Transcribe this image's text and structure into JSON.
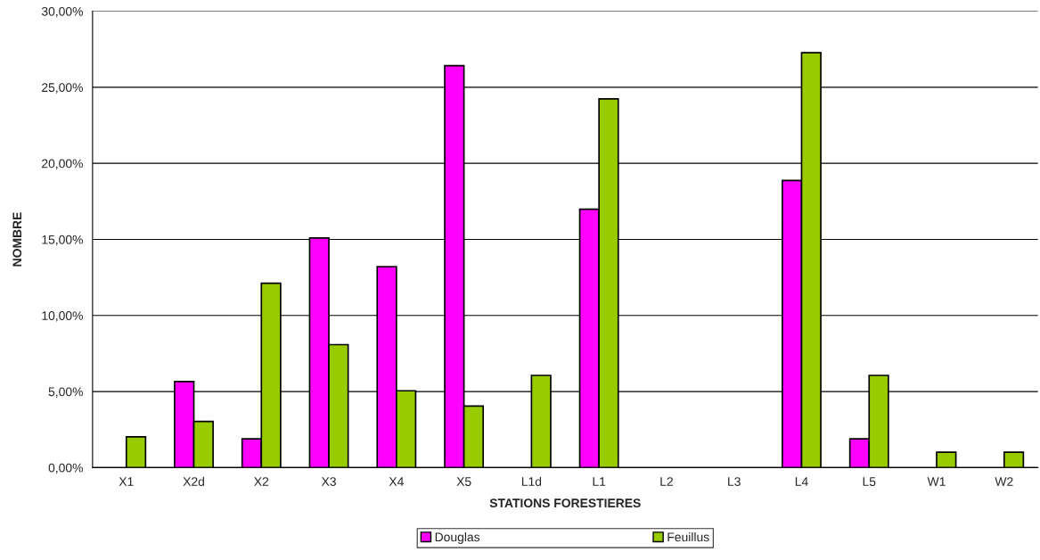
{
  "chart_data": {
    "type": "bar",
    "xlabel": "STATIONS FORESTIERES",
    "ylabel": "NOMBRE",
    "categories": [
      "X1",
      "X2d",
      "X2",
      "X3",
      "X4",
      "X5",
      "L1d",
      "L1",
      "L2",
      "L3",
      "L4",
      "L5",
      "W1",
      "W2"
    ],
    "series": [
      {
        "name": "Douglas",
        "color": "#ff00ff",
        "values": [
          null,
          5.66,
          1.89,
          15.09,
          13.21,
          26.42,
          null,
          16.98,
          null,
          null,
          18.87,
          1.89,
          null,
          null
        ]
      },
      {
        "name": "Feuillus",
        "color": "#99cc00",
        "values": [
          2.02,
          3.03,
          12.12,
          8.08,
          5.05,
          4.04,
          6.06,
          24.24,
          null,
          null,
          27.27,
          6.06,
          1.01,
          1.01
        ]
      }
    ],
    "ylim": [
      0,
      30
    ],
    "yticks": [
      {
        "value": 0,
        "label": "0,00%"
      },
      {
        "value": 5,
        "label": "5,00%"
      },
      {
        "value": 10,
        "label": "10,00%"
      },
      {
        "value": 15,
        "label": "15,00%"
      },
      {
        "value": 20,
        "label": "20,00%"
      },
      {
        "value": 25,
        "label": "25,00%"
      },
      {
        "value": 30,
        "label": "30,00%"
      }
    ],
    "grid": "y",
    "legend": "bottom"
  }
}
